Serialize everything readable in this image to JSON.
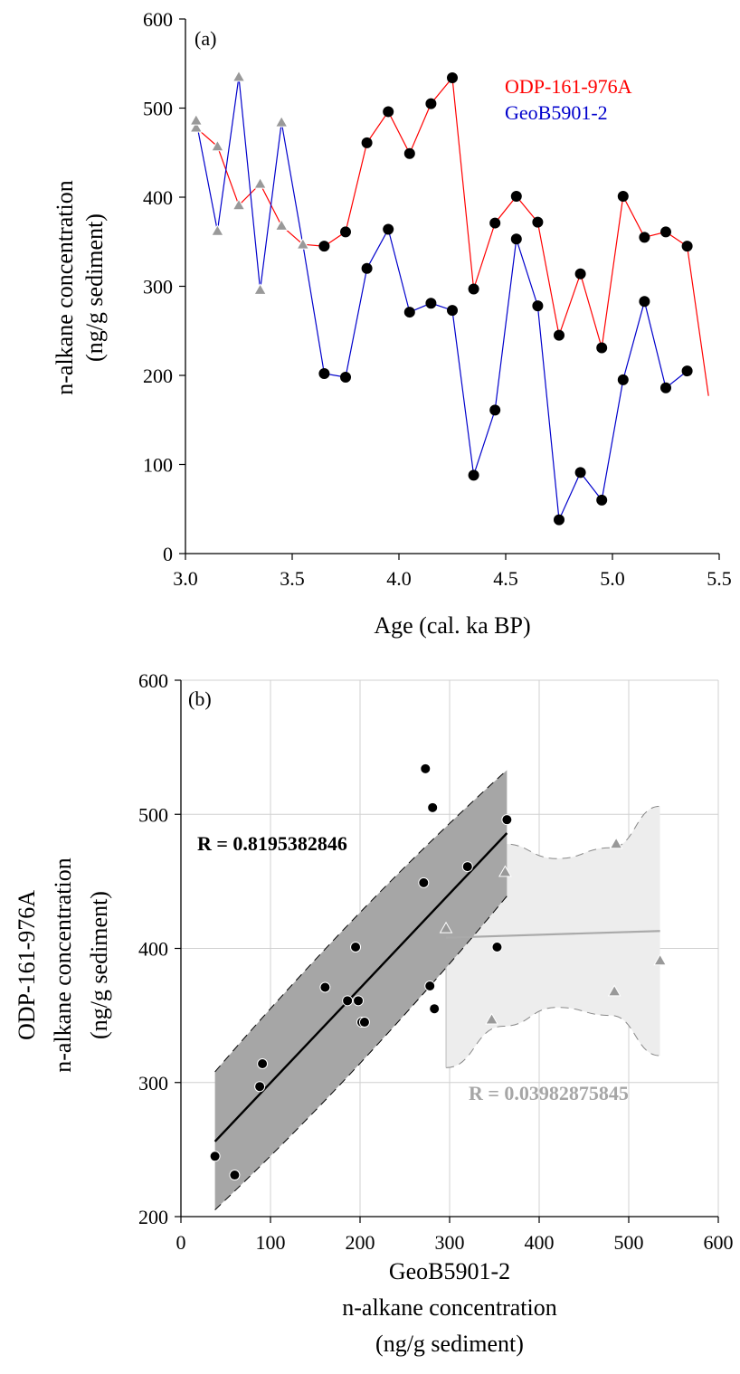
{
  "colors": {
    "odp": "#ff0000",
    "geob": "#0000cc",
    "black_marker": "#000000",
    "gray_marker": "#999999",
    "grid": "#d0d0d0",
    "ci_dark": "#a6a6a6",
    "ci_light": "#ededed",
    "fit_light": "#aaaaaa"
  },
  "chart_data": [
    {
      "type": "line",
      "panel_label": "(a)",
      "title": "",
      "xlabel": "Age (cal. ka BP)",
      "ylabel": "n-alkane concentration",
      "ylabel_line2": "(ng/g sediment)",
      "xlim": [
        3.0,
        5.5
      ],
      "ylim": [
        0,
        600
      ],
      "xticks": [
        3.0,
        3.5,
        4.0,
        4.5,
        5.0,
        5.5
      ],
      "xtick_labels": [
        "3.0",
        "3.5",
        "4.0",
        "4.5",
        "5.0",
        "5.5"
      ],
      "yticks": [
        0,
        100,
        200,
        300,
        400,
        500,
        600
      ],
      "ytick_labels": [
        "0",
        "100",
        "200",
        "300",
        "400",
        "500",
        "600"
      ],
      "grid": false,
      "legend_position": "top-right",
      "series": [
        {
          "name": "ODP-161-976A",
          "color": "#ff0000",
          "x": [
            3.05,
            3.15,
            3.25,
            3.35,
            3.45,
            3.55,
            3.65,
            3.75,
            3.85,
            3.95,
            4.05,
            4.15,
            4.25,
            4.35,
            4.45,
            4.55,
            4.65,
            4.75,
            4.85,
            4.95,
            5.05,
            5.15,
            5.25,
            5.35,
            5.45
          ],
          "y": [
            478,
            457,
            391,
            415,
            368,
            347,
            345,
            361,
            461,
            496,
            449,
            505,
            534,
            297,
            371,
            401,
            372,
            245,
            314,
            231,
            401,
            355,
            361,
            345,
            177
          ],
          "markers": [
            "triangle",
            "triangle",
            "triangle",
            "triangle",
            "triangle",
            "triangle",
            "circle",
            "circle",
            "circle",
            "circle",
            "circle",
            "circle",
            "circle",
            "circle",
            "circle",
            "circle",
            "circle",
            "circle",
            "circle",
            "circle",
            "circle",
            "circle",
            "circle",
            "circle",
            "none"
          ]
        },
        {
          "name": "GeoB5901-2",
          "color": "#0000cc",
          "x": [
            3.05,
            3.15,
            3.25,
            3.35,
            3.45,
            3.55,
            3.65,
            3.75,
            3.85,
            3.95,
            4.05,
            4.15,
            4.25,
            4.35,
            4.45,
            4.55,
            4.65,
            4.75,
            4.85,
            4.95,
            5.05,
            5.15,
            5.25,
            5.35
          ],
          "y": [
            486,
            362,
            535,
            296,
            484,
            347,
            202,
            198,
            320,
            364,
            271,
            281,
            273,
            88,
            161,
            353,
            278,
            38,
            91,
            60,
            195,
            283,
            186,
            205
          ],
          "markers": [
            "triangle",
            "triangle",
            "triangle",
            "triangle",
            "triangle",
            "triangle",
            "circle",
            "circle",
            "circle",
            "circle",
            "circle",
            "circle",
            "circle",
            "circle",
            "circle",
            "circle",
            "circle",
            "circle",
            "circle",
            "circle",
            "circle",
            "circle",
            "circle",
            "circle"
          ]
        }
      ]
    },
    {
      "type": "scatter",
      "panel_label": "(b)",
      "title": "",
      "xlabel": "GeoB5901-2",
      "xlabel_line2": "n-alkane concentration",
      "xlabel_line3": "(ng/g sediment)",
      "ylabel": "ODP-161-976A",
      "ylabel_line2": "n-alkane concentration",
      "ylabel_line3": "(ng/g sediment)",
      "xlim": [
        0,
        600
      ],
      "ylim": [
        200,
        600
      ],
      "xticks": [
        0,
        100,
        200,
        300,
        400,
        500,
        600
      ],
      "xtick_labels": [
        "0",
        "100",
        "200",
        "300",
        "400",
        "500",
        "600"
      ],
      "yticks": [
        200,
        300,
        400,
        500,
        600
      ],
      "ytick_labels": [
        "200",
        "300",
        "400",
        "500",
        "600"
      ],
      "grid": true,
      "series": [
        {
          "group": "circles",
          "marker": "circle",
          "x": [
            38,
            60,
            88,
            91,
            161,
            186,
            195,
            198,
            202,
            205,
            271,
            273,
            278,
            281,
            283,
            320,
            353,
            364
          ],
          "y": [
            245,
            231,
            297,
            314,
            371,
            361,
            401,
            361,
            345,
            345,
            449,
            534,
            372,
            505,
            355,
            461,
            401,
            496
          ]
        },
        {
          "group": "triangles",
          "marker": "triangle",
          "x": [
            296,
            347,
            362,
            484,
            486,
            535
          ],
          "y": [
            415,
            347,
            457,
            368,
            478,
            391
          ]
        }
      ],
      "fits": [
        {
          "group": "circles",
          "label": "R = 0.8195382846",
          "x_range": [
            38,
            364
          ],
          "line": [
            256,
            486
          ],
          "ci_upper": [
            308,
            533
          ],
          "ci_lower": [
            205,
            439
          ]
        },
        {
          "group": "triangles",
          "label": "R = 0.03982875845",
          "x_range": [
            296,
            535
          ],
          "line": [
            408,
            413
          ],
          "ci_upper_x": [
            296,
            360,
            420,
            480,
            535
          ],
          "ci_upper": [
            466,
            478,
            467,
            475,
            506
          ],
          "ci_lower_x": [
            296,
            360,
            420,
            480,
            535
          ],
          "ci_lower": [
            311,
            342,
            356,
            350,
            320
          ]
        }
      ]
    }
  ]
}
